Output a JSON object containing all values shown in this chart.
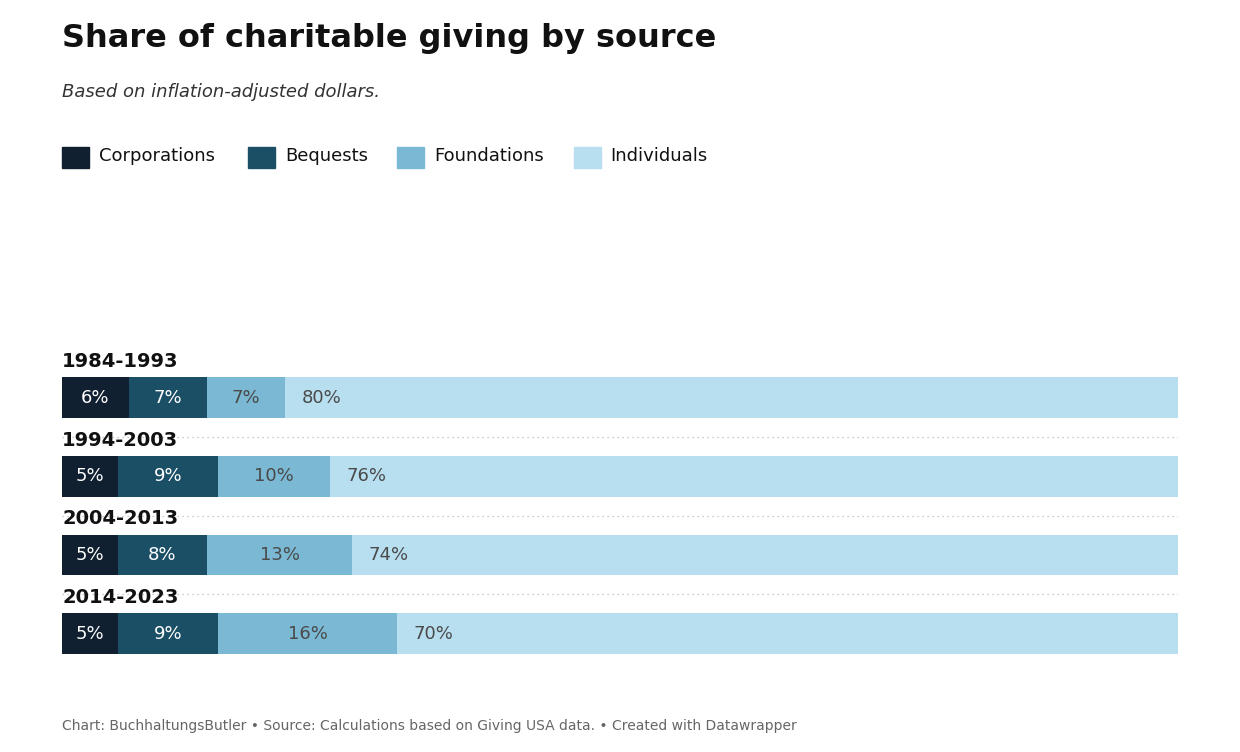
{
  "title": "Share of charitable giving by source",
  "subtitle": "Based on inflation-adjusted dollars.",
  "footer": "Chart: BuchhaltungsButler • Source: Calculations based on Giving USA data. • Created with Datawrapper",
  "categories": [
    "1984-1993",
    "1994-2003",
    "2004-2013",
    "2014-2023"
  ],
  "sources": [
    "Corporations",
    "Bequests",
    "Foundations",
    "Individuals"
  ],
  "colors": [
    "#102030",
    "#1b4f66",
    "#7ab8d4",
    "#b8dff0"
  ],
  "data": [
    [
      6,
      7,
      7,
      80
    ],
    [
      5,
      9,
      10,
      76
    ],
    [
      5,
      8,
      13,
      74
    ],
    [
      5,
      9,
      16,
      70
    ]
  ],
  "label_colors": [
    "#ffffff",
    "#ffffff",
    "#4a4a4a",
    "#4a4a4a"
  ],
  "label_align": [
    "center",
    "center",
    "center",
    "left"
  ],
  "background_color": "#ffffff"
}
